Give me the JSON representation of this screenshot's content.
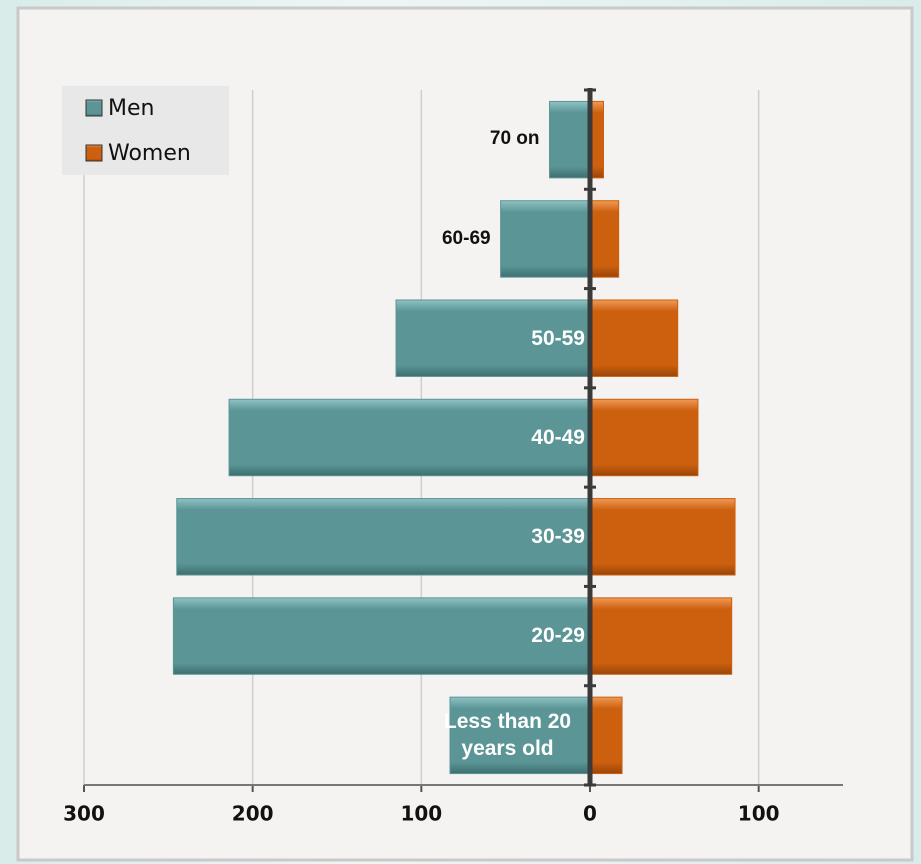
{
  "chart_data": {
    "type": "pyramid",
    "categories": [
      "Less than 20 years old",
      "20-29",
      "30-39",
      "40-49",
      "50-59",
      "60-69",
      "70 on"
    ],
    "series": [
      {
        "name": "Men",
        "color": "#5b9596",
        "values": [
          -83,
          -247,
          -245,
          -214,
          -115,
          -53,
          -24
        ]
      },
      {
        "name": "Women",
        "color": "#cc600f",
        "values": [
          19,
          84,
          86,
          64,
          52,
          17,
          8
        ]
      }
    ],
    "xlim": [
      -300,
      150
    ],
    "xticks": [
      {
        "value": -300,
        "label": "300"
      },
      {
        "value": -200,
        "label": "200"
      },
      {
        "value": -100,
        "label": "100"
      },
      0,
      100
    ],
    "grid": true,
    "legend": "upper left"
  }
}
